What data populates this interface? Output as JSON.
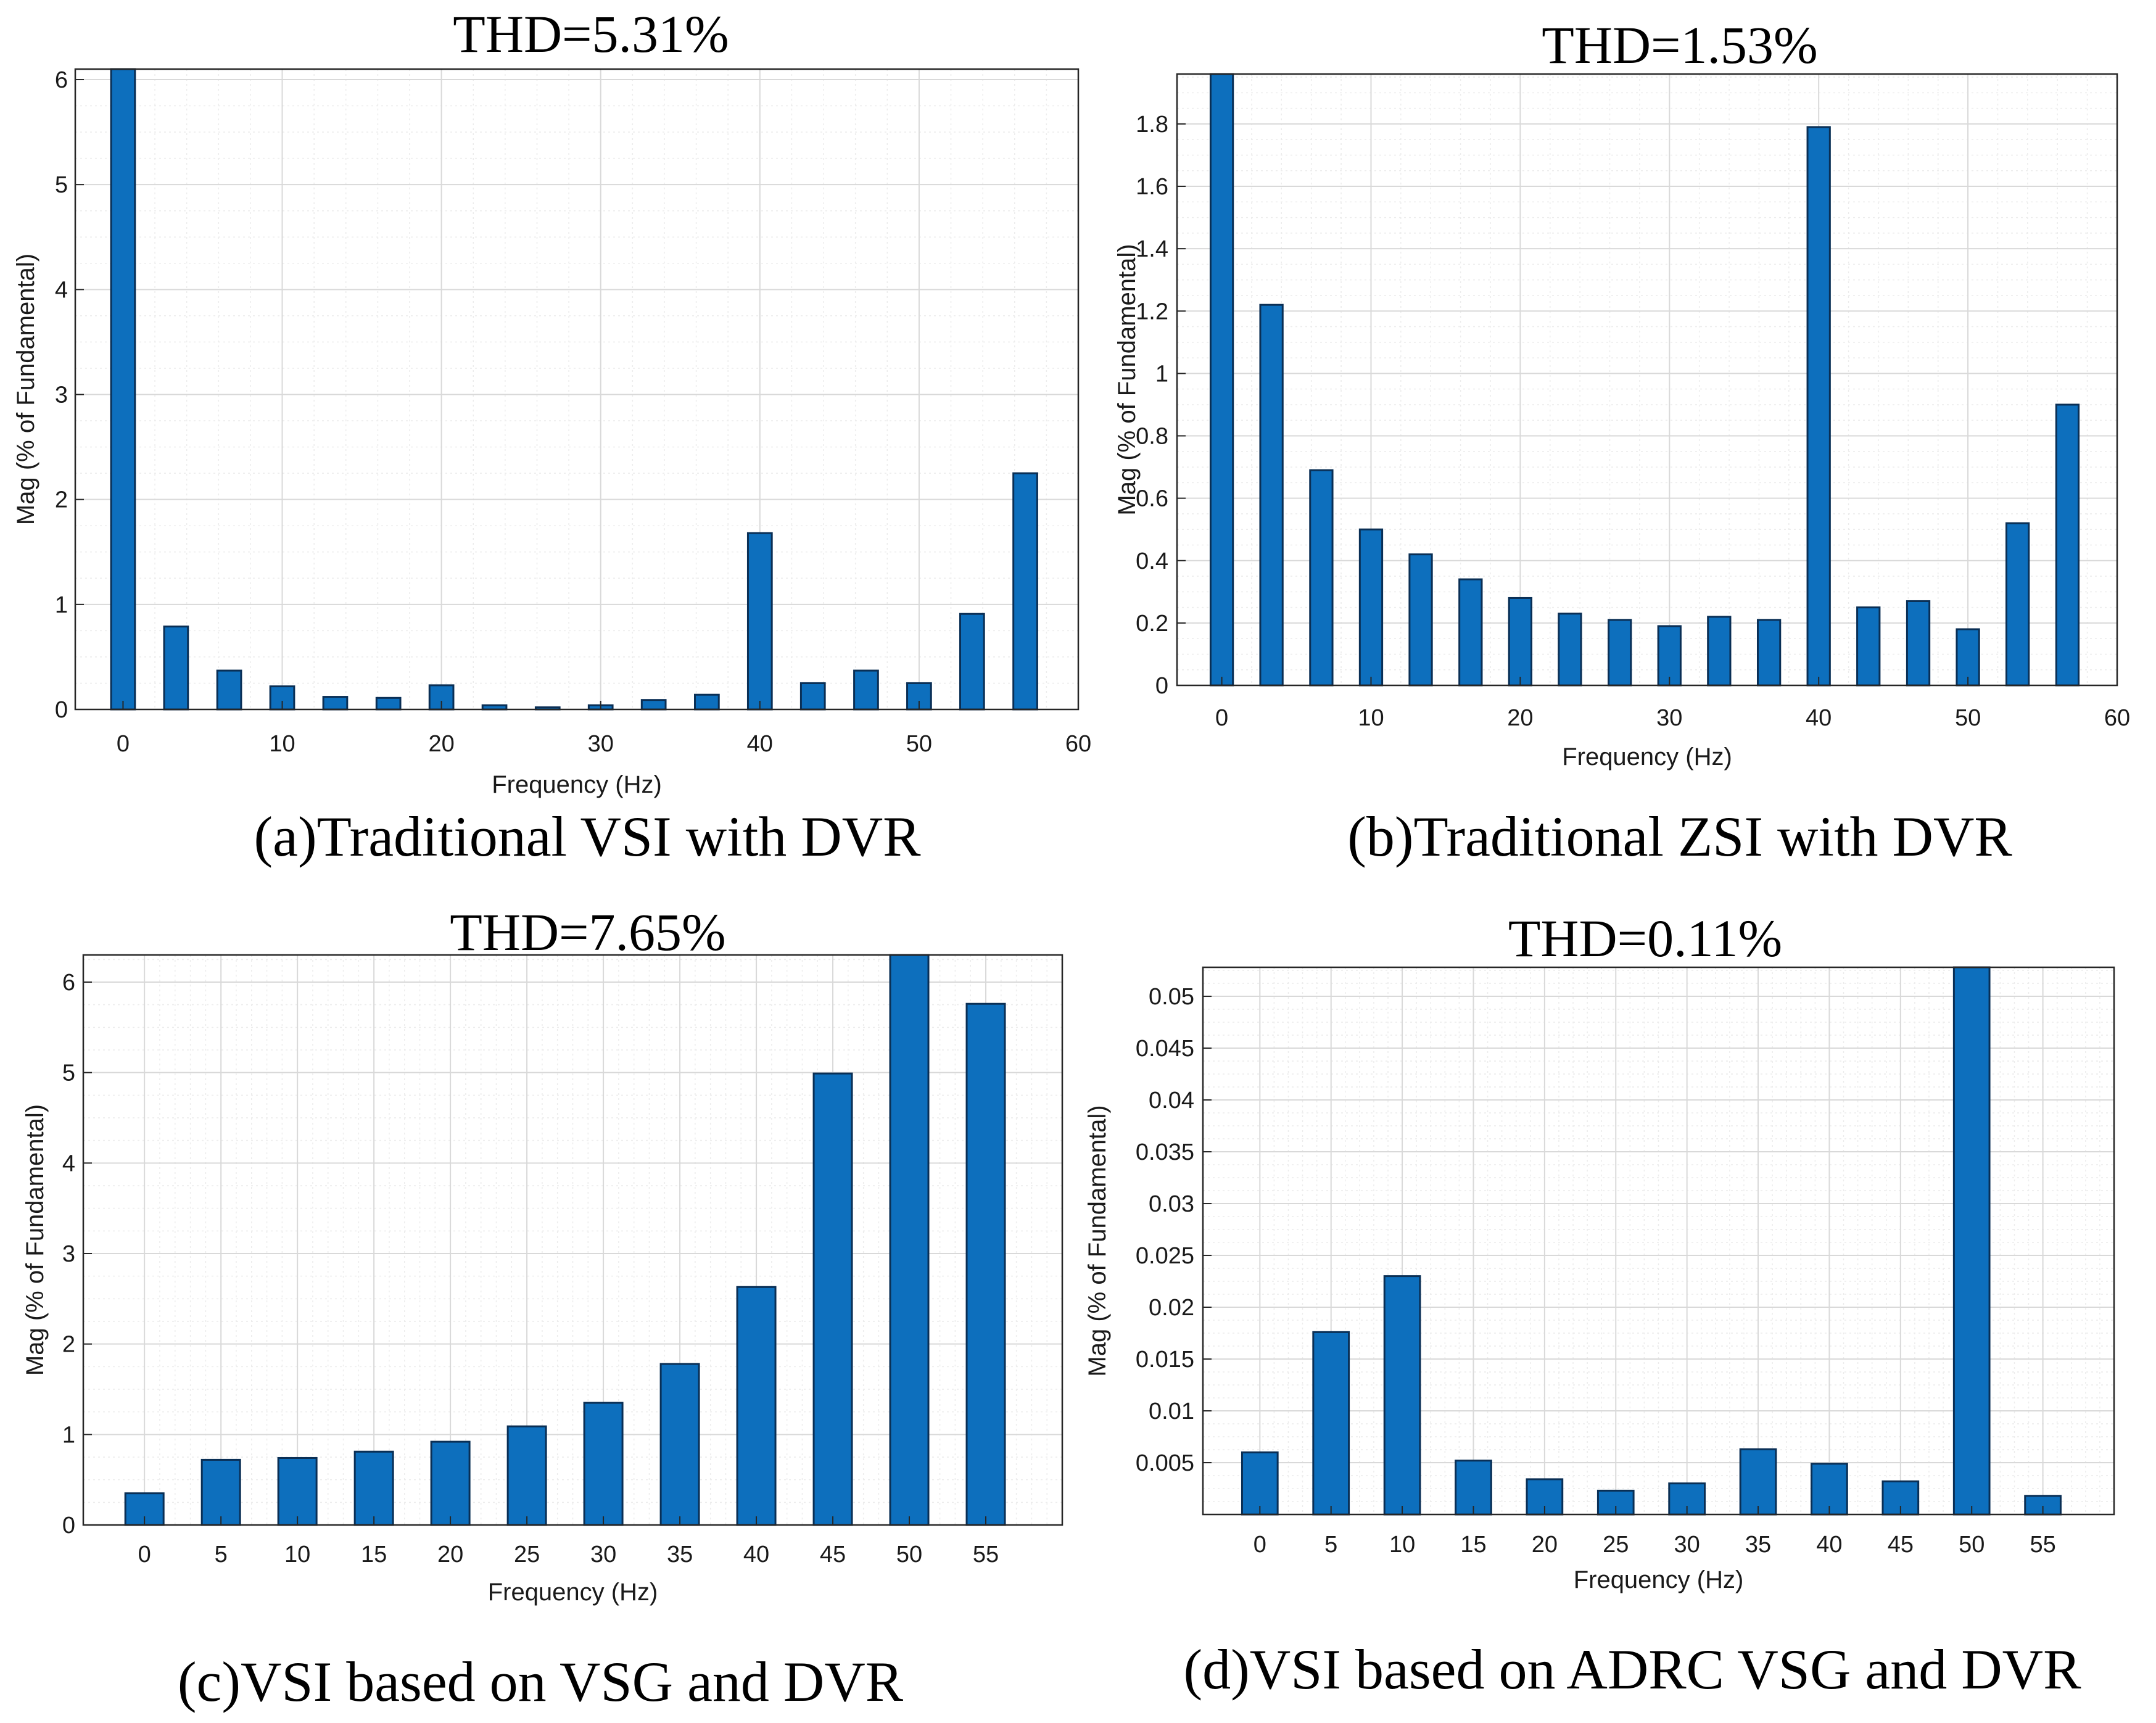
{
  "figure": {
    "colors": {
      "bar": "#0d6fbd",
      "bar_edge": "#0a2f55",
      "grid": "#d9d9d9",
      "axis": "#262626"
    }
  },
  "chart_data": [
    {
      "id": "a",
      "type": "bar",
      "title": "THD=5.31%",
      "caption": "(a)Traditional VSI with DVR",
      "xlabel": "Frequency (Hz)",
      "ylabel": "Mag (% of Fundamental)",
      "xlim": [
        -3,
        60
      ],
      "ylim": [
        0,
        6.1
      ],
      "xticks": [
        0,
        10,
        20,
        30,
        40,
        50,
        60
      ],
      "yticks": [
        0,
        1,
        2,
        3,
        4,
        5,
        6
      ],
      "ytick_labels": [
        "0",
        "1",
        "2",
        "3",
        "4",
        "5",
        "6"
      ],
      "bar_width": 1.5,
      "x": [
        0,
        3.33,
        6.67,
        10,
        13.33,
        16.67,
        20,
        23.33,
        26.67,
        30,
        33.33,
        36.67,
        40,
        43.33,
        46.67,
        50,
        53.33,
        56.67
      ],
      "values": [
        6.1,
        0.79,
        0.37,
        0.22,
        0.12,
        0.11,
        0.23,
        0.04,
        0.02,
        0.04,
        0.09,
        0.14,
        1.68,
        0.25,
        0.37,
        0.25,
        0.91,
        2.25
      ]
    },
    {
      "id": "b",
      "type": "bar",
      "title": "THD=1.53%",
      "caption": "(b)Traditional ZSI with DVR",
      "xlabel": "Frequency (Hz)",
      "ylabel": "Mag (% of Fundamental)",
      "xlim": [
        -3,
        60
      ],
      "ylim": [
        0,
        1.96
      ],
      "xticks": [
        0,
        10,
        20,
        30,
        40,
        50,
        60
      ],
      "yticks": [
        0,
        0.2,
        0.4,
        0.6,
        0.8,
        1,
        1.2,
        1.4,
        1.6,
        1.8
      ],
      "ytick_labels": [
        "0",
        "0.2",
        "0.4",
        "0.6",
        "0.8",
        "1",
        "1.2",
        "1.4",
        "1.6",
        "1.8"
      ],
      "bar_width": 1.5,
      "x": [
        0,
        3.33,
        6.67,
        10,
        13.33,
        16.67,
        20,
        23.33,
        26.67,
        30,
        33.33,
        36.67,
        40,
        43.33,
        46.67,
        50,
        53.33,
        56.67
      ],
      "values": [
        1.96,
        1.22,
        0.69,
        0.5,
        0.42,
        0.34,
        0.28,
        0.23,
        0.21,
        0.19,
        0.22,
        0.21,
        1.79,
        0.25,
        0.27,
        0.18,
        0.52,
        0.9
      ]
    },
    {
      "id": "c",
      "type": "bar",
      "title": "THD=7.65%",
      "caption": "(c)VSI based on VSG and DVR",
      "xlabel": "Frequency (Hz)",
      "ylabel": "Mag (% of Fundamental)",
      "xlim": [
        -4,
        60
      ],
      "ylim": [
        0,
        6.3
      ],
      "xticks": [
        0,
        5,
        10,
        15,
        20,
        25,
        30,
        35,
        40,
        45,
        50,
        55
      ],
      "yticks": [
        0,
        1,
        2,
        3,
        4,
        5,
        6
      ],
      "ytick_labels": [
        "0",
        "1",
        "2",
        "3",
        "4",
        "5",
        "6"
      ],
      "bar_width": 2.5,
      "x": [
        0,
        5,
        10,
        15,
        20,
        25,
        30,
        35,
        40,
        45,
        50,
        55
      ],
      "values": [
        0.35,
        0.72,
        0.74,
        0.81,
        0.92,
        1.09,
        1.35,
        1.78,
        2.63,
        4.99,
        6.3,
        5.76
      ]
    },
    {
      "id": "d",
      "type": "bar",
      "title": "THD=0.11%",
      "caption": "(d)VSI based on ADRC VSG and DVR",
      "xlabel": "Frequency (Hz)",
      "ylabel": "Mag (% of Fundamental)",
      "xlim": [
        -4,
        60
      ],
      "ylim": [
        0,
        0.0528
      ],
      "xticks": [
        0,
        5,
        10,
        15,
        20,
        25,
        30,
        35,
        40,
        45,
        50,
        55
      ],
      "yticks": [
        0.005,
        0.01,
        0.015,
        0.02,
        0.025,
        0.03,
        0.035,
        0.04,
        0.045,
        0.05
      ],
      "ytick_labels": [
        "0.005",
        "0.01",
        "0.015",
        "0.02",
        "0.025",
        "0.03",
        "0.035",
        "0.04",
        "0.045",
        "0.05"
      ],
      "bar_width": 2.5,
      "x": [
        0,
        5,
        10,
        15,
        20,
        25,
        30,
        35,
        40,
        45,
        50,
        55
      ],
      "values": [
        0.006,
        0.0176,
        0.023,
        0.0052,
        0.0034,
        0.0023,
        0.003,
        0.0063,
        0.0049,
        0.0032,
        0.0528,
        0.0018
      ]
    }
  ]
}
